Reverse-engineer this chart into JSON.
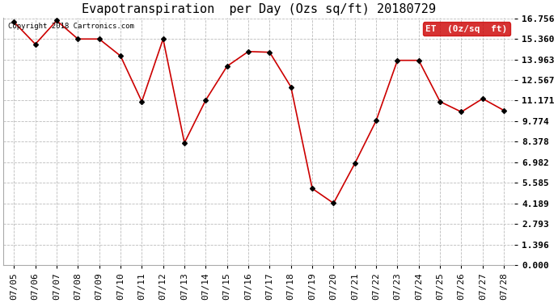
{
  "title": "Evapotranspiration  per Day (Ozs sq/ft) 20180729",
  "dates": [
    "07/05",
    "07/06",
    "07/07",
    "07/08",
    "07/09",
    "07/10",
    "07/11",
    "07/12",
    "07/13",
    "07/14",
    "07/15",
    "07/16",
    "07/17",
    "07/18",
    "07/19",
    "07/20",
    "07/21",
    "07/22",
    "07/23",
    "07/24",
    "07/25",
    "07/26",
    "07/27",
    "07/28"
  ],
  "values": [
    16.5,
    15.0,
    16.6,
    15.35,
    15.35,
    14.2,
    11.1,
    15.35,
    8.3,
    11.2,
    13.5,
    14.5,
    14.45,
    12.1,
    5.2,
    4.2,
    6.9,
    9.8,
    13.9,
    13.9,
    11.1,
    10.4,
    11.3,
    10.5
  ],
  "yticks": [
    0.0,
    1.396,
    2.793,
    4.189,
    5.585,
    6.982,
    8.378,
    9.774,
    11.171,
    12.567,
    13.963,
    15.36,
    16.756
  ],
  "line_color": "#cc0000",
  "marker_color": "#000000",
  "bg_color": "#ffffff",
  "plot_bg_color": "#ffffff",
  "grid_color": "#bbbbbb",
  "legend_label": "ET  (0z/sq  ft)",
  "legend_bg": "#cc0000",
  "legend_text_color": "#ffffff",
  "copyright_text": "Copyright 2018 Cartronics.com",
  "title_fontsize": 11,
  "tick_fontsize": 8,
  "ymin": 0.0,
  "ymax": 16.756
}
